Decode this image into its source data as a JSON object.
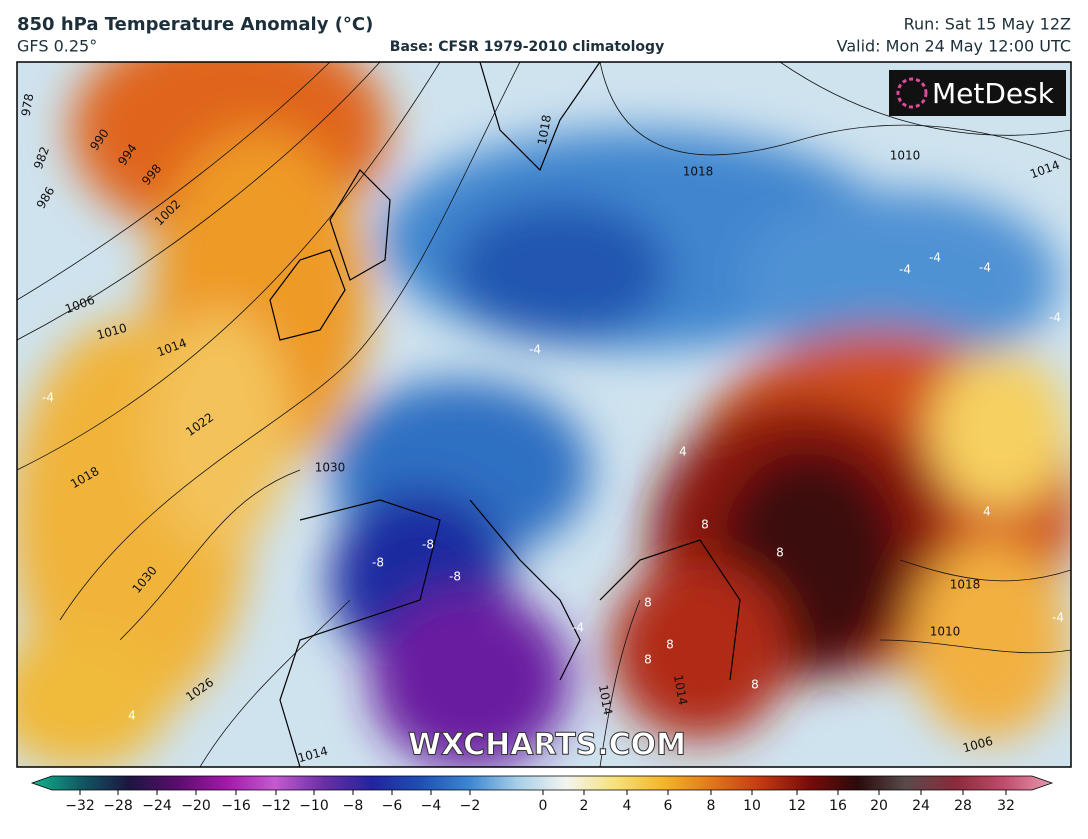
{
  "header": {
    "title": "850 hPa Temperature Anomaly (°C)",
    "model": "GFS 0.25°",
    "base": "Base: CFSR 1979-2010 climatology",
    "run": "Run: Sat 15 May 12Z",
    "valid": "Valid: Mon 24 May 12:00 UTC"
  },
  "logo": "MetDesk",
  "watermark": "WXCHARTS.COM",
  "map": {
    "isobar_labels": [
      "978",
      "982",
      "986",
      "990",
      "994",
      "998",
      "1002",
      "1006",
      "1010",
      "1014",
      "1018",
      "1022",
      "1026",
      "1030",
      "1030",
      "1018",
      "1018",
      "1010",
      "1014",
      "1018",
      "1010",
      "1006",
      "1014",
      "1014",
      "1014"
    ],
    "anomaly_labels": [
      "-4",
      "-4",
      "-4",
      "-4",
      "-4",
      "-4",
      "-8",
      "-8",
      "-8",
      "-4",
      "8",
      "8",
      "8",
      "8",
      "8",
      "8",
      "4",
      "4",
      "-4",
      "4"
    ]
  },
  "colorbar": {
    "colors": [
      "#12b58f",
      "#0f5a63",
      "#1c1540",
      "#5a0d6e",
      "#a418a8",
      "#c45ad0",
      "#6a2fa6",
      "#2323a0",
      "#1e4fb5",
      "#3c86d2",
      "#a7cfe8",
      "#f4f4f0",
      "#f6e27a",
      "#f3b52a",
      "#e2761a",
      "#c23a12",
      "#7a0a0a",
      "#2a0a0a",
      "#5a4a4a",
      "#8a2a3a",
      "#c04a6a",
      "#e89ab0"
    ],
    "ticks": [
      {
        "value": -32,
        "label": "−32"
      },
      {
        "value": -28,
        "label": "−28"
      },
      {
        "value": -24,
        "label": "−24"
      },
      {
        "value": -20,
        "label": "−20"
      },
      {
        "value": -16,
        "label": "−16"
      },
      {
        "value": -12,
        "label": "−12"
      },
      {
        "value": -10,
        "label": "−10"
      },
      {
        "value": -8,
        "label": "−8"
      },
      {
        "value": -6,
        "label": "−6"
      },
      {
        "value": -4,
        "label": "−4"
      },
      {
        "value": -2,
        "label": "−2"
      },
      0,
      2,
      4,
      6,
      8,
      10,
      12,
      16,
      20,
      24,
      28,
      32
    ]
  }
}
